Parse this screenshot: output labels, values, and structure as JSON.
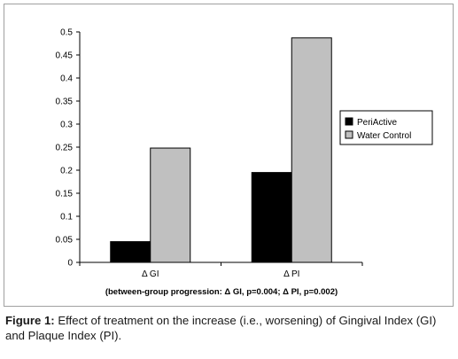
{
  "chart_data": {
    "type": "bar",
    "categories": [
      "Δ GI",
      "Δ PI"
    ],
    "series": [
      {
        "name": "PeriActive",
        "values": [
          0.045,
          0.195
        ],
        "color": "#000000"
      },
      {
        "name": "Water Control",
        "values": [
          0.248,
          0.487
        ],
        "color": "#c0c0c0"
      }
    ],
    "ylim": [
      0,
      0.5
    ],
    "yticks": [
      0,
      0.05,
      0.1,
      0.15,
      0.2,
      0.25,
      0.3,
      0.35,
      0.4,
      0.45,
      0.5
    ],
    "ytick_labels": [
      "0",
      "0.05",
      "0.1",
      "0.15",
      "0.2",
      "0.25",
      "0.3",
      "0.35",
      "0.4",
      "0.45",
      "0.5"
    ],
    "legend_position": "right",
    "grid": false,
    "annotation": "(between-group progression: Δ GI, p=0.004; Δ PI, p=0.002)"
  },
  "caption": {
    "label": "Figure 1:",
    "text": " Effect of treatment on the increase (i.e., worsening) of Gingival Index (GI) and Plaque Index (PI)."
  }
}
